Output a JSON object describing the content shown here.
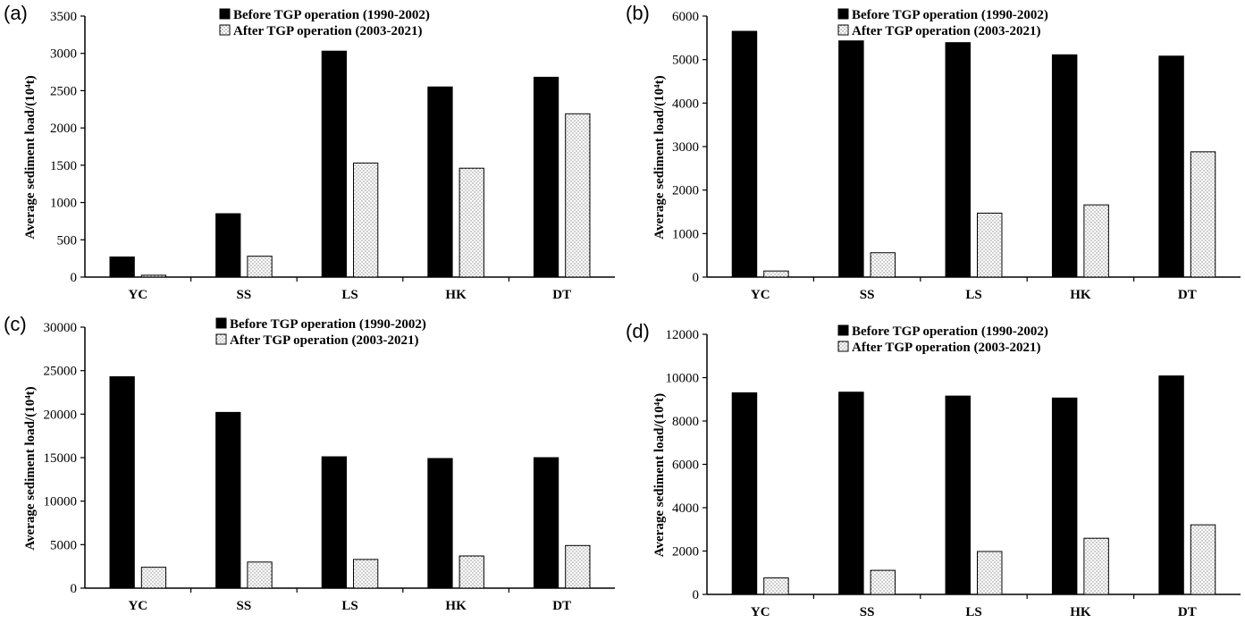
{
  "chart_data": [
    {
      "panel": "(a)",
      "type": "bar",
      "categories": [
        "YC",
        "SS",
        "LS",
        "HK",
        "DT"
      ],
      "ylabel": "Average sediment load/(10⁴t)",
      "ylim": [
        0,
        3500
      ],
      "yticks": [
        "0",
        "500",
        "1000",
        "1500",
        "2000",
        "2500",
        "3000",
        "3500"
      ],
      "legend_position": "top-center",
      "grid": false,
      "series": [
        {
          "name": "Before TGP operation (1990-2002)",
          "values": [
            270,
            850,
            3030,
            2550,
            2680
          ]
        },
        {
          "name": "After TGP operation (2003-2021)",
          "values": [
            25,
            280,
            1530,
            1460,
            2190
          ]
        }
      ]
    },
    {
      "panel": "(b)",
      "type": "bar",
      "categories": [
        "YC",
        "SS",
        "LS",
        "HK",
        "DT"
      ],
      "ylabel": "Average sediment load/(10⁴t)",
      "ylim": [
        0,
        6000
      ],
      "yticks": [
        "0",
        "1000",
        "2000",
        "3000",
        "4000",
        "5000",
        "6000"
      ],
      "legend_position": "top-center",
      "grid": false,
      "series": [
        {
          "name": "Before TGP operation (1990-2002)",
          "values": [
            5650,
            5430,
            5390,
            5110,
            5080
          ]
        },
        {
          "name": "After TGP operation (2003-2021)",
          "values": [
            140,
            560,
            1470,
            1660,
            2880
          ]
        }
      ]
    },
    {
      "panel": "(c)",
      "type": "bar",
      "categories": [
        "YC",
        "SS",
        "LS",
        "HK",
        "DT"
      ],
      "ylabel": "Average sediment load/(10⁴t)",
      "ylim": [
        0,
        30000
      ],
      "yticks": [
        "0",
        "5000",
        "10000",
        "15000",
        "20000",
        "25000",
        "30000"
      ],
      "legend_position": "top-center",
      "grid": false,
      "series": [
        {
          "name": "Before TGP operation (1990-2002)",
          "values": [
            24300,
            20200,
            15100,
            14900,
            15000
          ]
        },
        {
          "name": "After TGP operation (2003-2021)",
          "values": [
            2400,
            3000,
            3300,
            3700,
            4900
          ]
        }
      ]
    },
    {
      "panel": "(d)",
      "type": "bar",
      "categories": [
        "YC",
        "SS",
        "LS",
        "HK",
        "DT"
      ],
      "ylabel": "Average sediment load/(10⁴t)",
      "ylim": [
        0,
        12000
      ],
      "yticks": [
        "0",
        "2000",
        "4000",
        "6000",
        "8000",
        "10000",
        "12000"
      ],
      "legend_position": "top-center",
      "grid": false,
      "series": [
        {
          "name": "Before TGP operation (1990-2002)",
          "values": [
            9300,
            9330,
            9150,
            9060,
            10080
          ]
        },
        {
          "name": "After TGP operation (2003-2021)",
          "values": [
            760,
            1110,
            1980,
            2590,
            3210
          ]
        }
      ]
    }
  ],
  "colors": {
    "before_fill": "#000000",
    "after_fill": "#ffffff",
    "after_dots": "#555555",
    "axis": "#000000"
  }
}
